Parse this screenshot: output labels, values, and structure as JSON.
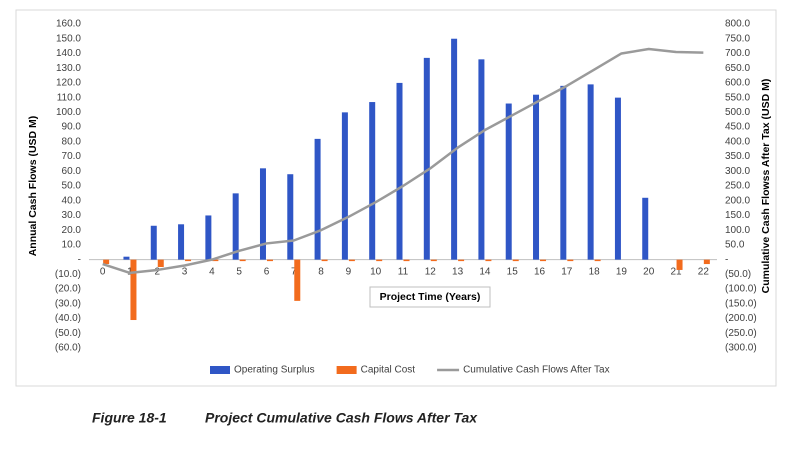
{
  "chart_data": {
    "type": "combo",
    "figure_number": "Figure 18-1",
    "title": "Project Cumulative Cash Flows After Tax",
    "x_label": "Project Time (Years)",
    "y_label": "Annual Cash Flows (USD M)",
    "y2_label": "Cumulative Cash Flowss After Tax (USD M)",
    "categories": [
      "0",
      "1",
      "2",
      "3",
      "4",
      "5",
      "6",
      "7",
      "8",
      "9",
      "10",
      "11",
      "12",
      "13",
      "14",
      "15",
      "16",
      "17",
      "18",
      "19",
      "20",
      "21",
      "22"
    ],
    "series": [
      {
        "name": "Operating Surplus",
        "type": "bar",
        "color": "#2f56c6",
        "values": [
          0,
          2,
          23,
          24,
          30,
          45,
          62,
          58,
          82,
          100,
          107,
          120,
          137,
          150,
          136,
          106,
          112,
          118,
          119,
          110,
          42,
          0,
          0
        ]
      },
      {
        "name": "Capital Cost",
        "type": "bar",
        "color": "#f26b1d",
        "values": [
          -3,
          -41,
          -5,
          -1,
          -1,
          -1,
          -1,
          -28,
          -1,
          -1,
          -1,
          -1,
          -1,
          -1,
          -1,
          -1,
          -1,
          -1,
          -1,
          0,
          0,
          -7,
          -3
        ]
      },
      {
        "name": "Cumulative Cash Flows After Tax",
        "type": "line",
        "color": "#9a9a9a",
        "axis": "y2",
        "values": [
          -15,
          -45,
          -35,
          -20,
          0,
          30,
          55,
          65,
          100,
          145,
          195,
          250,
          310,
          380,
          440,
          490,
          540,
          590,
          645,
          700,
          715,
          705,
          703
        ]
      }
    ],
    "ylim": [
      -60,
      160
    ],
    "yticks": [
      {
        "value": -60,
        "label": "(60.0)"
      },
      {
        "value": -50,
        "label": "(50.0)"
      },
      {
        "value": -40,
        "label": "(40.0)"
      },
      {
        "value": -30,
        "label": "(30.0)"
      },
      {
        "value": -20,
        "label": "(20.0)"
      },
      {
        "value": -10,
        "label": "(10.0)"
      },
      {
        "value": 0,
        "label": "-"
      },
      {
        "value": 10,
        "label": "10.0"
      },
      {
        "value": 20,
        "label": "20.0"
      },
      {
        "value": 30,
        "label": "30.0"
      },
      {
        "value": 40,
        "label": "40.0"
      },
      {
        "value": 50,
        "label": "50.0"
      },
      {
        "value": 60,
        "label": "60.0"
      },
      {
        "value": 70,
        "label": "70.0"
      },
      {
        "value": 80,
        "label": "80.0"
      },
      {
        "value": 90,
        "label": "90.0"
      },
      {
        "value": 100,
        "label": "100.0"
      },
      {
        "value": 110,
        "label": "110.0"
      },
      {
        "value": 120,
        "label": "120.0"
      },
      {
        "value": 130,
        "label": "130.0"
      },
      {
        "value": 140,
        "label": "140.0"
      },
      {
        "value": 150,
        "label": "150.0"
      },
      {
        "value": 160,
        "label": "160.0"
      }
    ],
    "y2lim": [
      -300,
      800
    ],
    "y2ticks": [
      {
        "value": -300,
        "label": "(300.0)"
      },
      {
        "value": -250,
        "label": "(250.0)"
      },
      {
        "value": -200,
        "label": "(200.0)"
      },
      {
        "value": -150,
        "label": "(150.0)"
      },
      {
        "value": -100,
        "label": "(100.0)"
      },
      {
        "value": -50,
        "label": "(50.0)"
      },
      {
        "value": 0,
        "label": "-"
      },
      {
        "value": 50,
        "label": "50.0"
      },
      {
        "value": 100,
        "label": "100.0"
      },
      {
        "value": 150,
        "label": "150.0"
      },
      {
        "value": 200,
        "label": "200.0"
      },
      {
        "value": 250,
        "label": "250.0"
      },
      {
        "value": 300,
        "label": "300.0"
      },
      {
        "value": 350,
        "label": "350.0"
      },
      {
        "value": 400,
        "label": "400.0"
      },
      {
        "value": 450,
        "label": "450.0"
      },
      {
        "value": 500,
        "label": "500.0"
      },
      {
        "value": 550,
        "label": "550.0"
      },
      {
        "value": 600,
        "label": "600.0"
      },
      {
        "value": 650,
        "label": "650.0"
      },
      {
        "value": 700,
        "label": "700.0"
      },
      {
        "value": 750,
        "label": "750.0"
      },
      {
        "value": 800,
        "label": "800.0"
      }
    ],
    "grid": false,
    "legend": "bottom"
  }
}
